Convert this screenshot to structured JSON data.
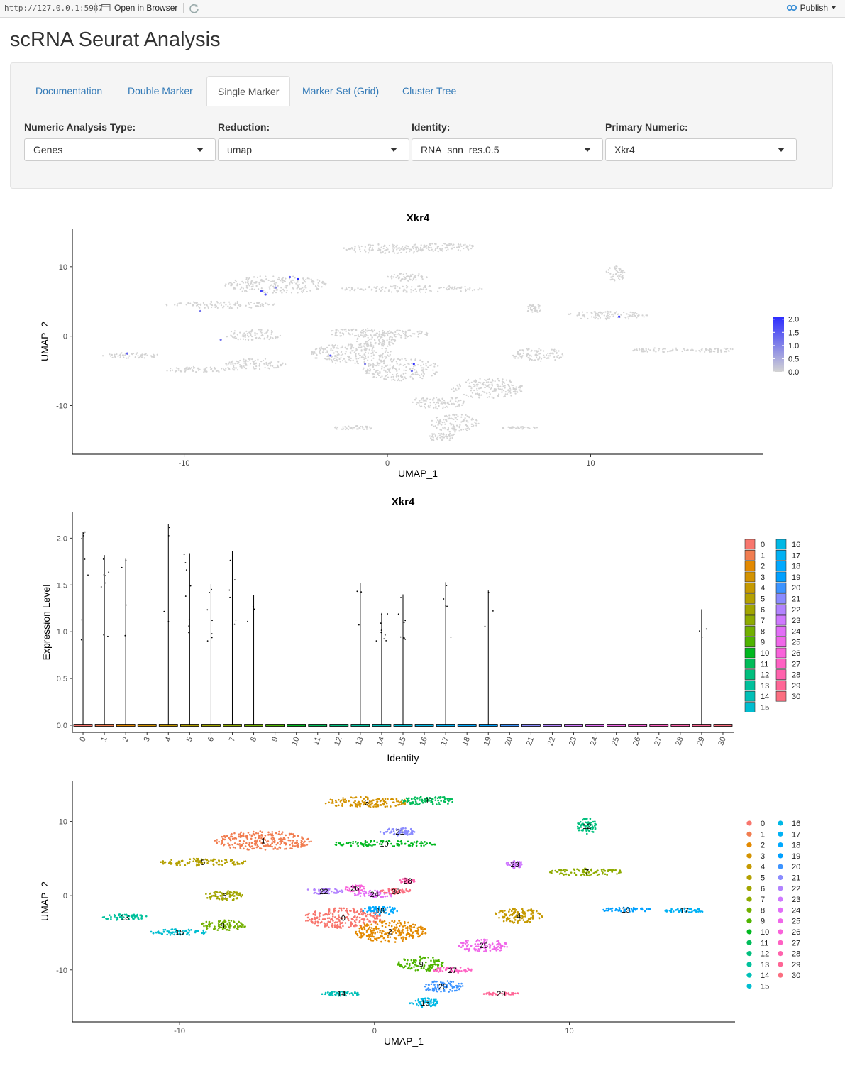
{
  "topbar": {
    "url": "http://127.0.0.1:5987",
    "open_browser_label": "Open in Browser",
    "publish_label": "Publish"
  },
  "page_title": "scRNA Seurat Analysis",
  "tabs": [
    {
      "label": "Documentation"
    },
    {
      "label": "Double Marker"
    },
    {
      "label": "Single Marker",
      "active": true
    },
    {
      "label": "Marker Set (Grid)"
    },
    {
      "label": "Cluster Tree"
    }
  ],
  "controls": [
    {
      "label": "Numeric Analysis Type:",
      "value": "Genes"
    },
    {
      "label": "Reduction:",
      "value": "umap"
    },
    {
      "label": "Identity:",
      "value": "RNA_snn_res.0.5"
    },
    {
      "label": "Primary Numeric:",
      "value": "Xkr4"
    }
  ],
  "colors": {
    "link": "#337ab7",
    "feature_low": "#d3d3d3",
    "feature_high": "#2b2bff"
  },
  "chart_data": [
    {
      "type": "scatter",
      "title": "Xkr4",
      "xlabel": "UMAP_1",
      "ylabel": "UMAP_2",
      "xlim": [
        -15.5,
        18.5
      ],
      "ylim": [
        -17,
        15.5
      ],
      "xticks": [
        -10,
        0,
        10
      ],
      "yticks": [
        -10,
        0,
        10
      ],
      "legend": {
        "placement": "right",
        "ticks": [
          "2.0",
          "1.5",
          "1.0",
          "0.5",
          "0.0"
        ],
        "range": [
          0,
          2.1
        ]
      },
      "regions": [
        {
          "cx": -5.5,
          "cy": 7.4,
          "rx": 2.5,
          "ry": 1.3
        },
        {
          "cx": -8.2,
          "cy": 4.5,
          "rx": 2.8,
          "ry": 0.5
        },
        {
          "cx": -6.6,
          "cy": 0.2,
          "rx": 1.4,
          "ry": 0.8
        },
        {
          "cx": -6.5,
          "cy": -4.0,
          "rx": 1.5,
          "ry": 0.8
        },
        {
          "cx": -12.6,
          "cy": -2.8,
          "rx": 1.4,
          "ry": 0.4
        },
        {
          "cx": -9.2,
          "cy": -4.8,
          "rx": 1.9,
          "ry": 0.4
        },
        {
          "cx": 0.2,
          "cy": 12.6,
          "rx": 2.4,
          "ry": 0.7
        },
        {
          "cx": 2.8,
          "cy": 12.8,
          "rx": 1.6,
          "ry": 0.6
        },
        {
          "cx": -1.8,
          "cy": -2.5,
          "rx": 2.0,
          "ry": 1.5
        },
        {
          "cx": 0.7,
          "cy": -4.8,
          "rx": 1.9,
          "ry": 1.6
        },
        {
          "cx": -0.6,
          "cy": -0.7,
          "rx": 1.0,
          "ry": 1.0
        },
        {
          "cx": 2.5,
          "cy": -9.5,
          "rx": 1.3,
          "ry": 1.0
        },
        {
          "cx": 1.2,
          "cy": 6.8,
          "rx": 3.5,
          "ry": 0.5
        },
        {
          "cx": 1.0,
          "cy": 8.5,
          "rx": 1.0,
          "ry": 0.6
        },
        {
          "cx": 11.2,
          "cy": 9.0,
          "rx": 0.5,
          "ry": 1.1
        },
        {
          "cx": 7.2,
          "cy": 4.0,
          "rx": 0.4,
          "ry": 0.6
        },
        {
          "cx": 10.8,
          "cy": 3.0,
          "rx": 2.0,
          "ry": 0.6
        },
        {
          "cx": 7.4,
          "cy": -2.7,
          "rx": 1.3,
          "ry": 1.0
        },
        {
          "cx": 13.5,
          "cy": -2.0,
          "rx": 1.5,
          "ry": 0.3
        },
        {
          "cx": 16.0,
          "cy": -2.0,
          "rx": 1.1,
          "ry": 0.3
        },
        {
          "cx": 4.9,
          "cy": -7.5,
          "rx": 1.8,
          "ry": 1.5
        },
        {
          "cx": 3.3,
          "cy": -12.5,
          "rx": 1.2,
          "ry": 1.3
        },
        {
          "cx": 2.7,
          "cy": -14.5,
          "rx": 0.8,
          "ry": 0.6
        },
        {
          "cx": -1.7,
          "cy": -13.2,
          "rx": 1.0,
          "ry": 0.3
        },
        {
          "cx": 6.5,
          "cy": -13.2,
          "rx": 0.9,
          "ry": 0.2
        },
        {
          "cx": -1.5,
          "cy": 0.5,
          "rx": 1.6,
          "ry": 0.6
        },
        {
          "cx": 0.8,
          "cy": 0.3,
          "rx": 1.2,
          "ry": 0.6
        }
      ],
      "expressing_cells": [
        {
          "x": -4.8,
          "y": 8.5,
          "v": 1.5
        },
        {
          "x": -5.5,
          "y": 7.0,
          "v": 1.0
        },
        {
          "x": -6.2,
          "y": 6.5,
          "v": 1.8
        },
        {
          "x": -9.2,
          "y": 3.6,
          "v": 1.2
        },
        {
          "x": -8.2,
          "y": -0.5,
          "v": 1.2
        },
        {
          "x": -12.8,
          "y": -2.5,
          "v": 1.4
        },
        {
          "x": -2.8,
          "y": -2.8,
          "v": 1.6
        },
        {
          "x": -1.1,
          "y": -4.0,
          "v": 1.0
        },
        {
          "x": 1.3,
          "y": -4.0,
          "v": 2.0
        },
        {
          "x": 1.2,
          "y": -5.0,
          "v": 1.3
        },
        {
          "x": 11.4,
          "y": 2.8,
          "v": 1.9
        },
        {
          "x": -6.0,
          "y": 6.0,
          "v": 1.6
        },
        {
          "x": -4.4,
          "y": 8.2,
          "v": 2.1
        }
      ]
    },
    {
      "type": "violin",
      "title": "Xkr4",
      "xlabel": "Identity",
      "ylabel": "Expression Level",
      "ylim": [
        -0.05,
        2.25
      ],
      "yticks": [
        "0.0",
        "0.5",
        "1.0",
        "1.5",
        "2.0"
      ],
      "categories": [
        "0",
        "1",
        "2",
        "3",
        "4",
        "5",
        "6",
        "7",
        "8",
        "9",
        "10",
        "11",
        "12",
        "13",
        "14",
        "15",
        "16",
        "17",
        "18",
        "19",
        "20",
        "21",
        "22",
        "23",
        "24",
        "25",
        "26",
        "27",
        "28",
        "29",
        "30"
      ],
      "max_values": [
        2.07,
        1.82,
        1.78,
        0,
        2.15,
        1.84,
        1.51,
        1.86,
        1.39,
        0,
        0,
        0,
        0,
        1.52,
        1.2,
        1.4,
        0,
        1.53,
        0,
        1.44,
        0,
        0,
        0,
        0,
        0,
        0,
        0,
        0,
        0,
        1.24,
        0
      ],
      "legend": {
        "placement": "right"
      }
    },
    {
      "type": "scatter",
      "xlabel": "UMAP_1",
      "ylabel": "UMAP_2",
      "xlim": [
        -15.5,
        18.5
      ],
      "ylim": [
        -17,
        15.5
      ],
      "xticks": [
        -10,
        0,
        10
      ],
      "yticks": [
        -10,
        0,
        10
      ],
      "legend": {
        "placement": "right"
      },
      "clusters": [
        {
          "id": "0",
          "cx": -1.6,
          "cy": -3.0,
          "rx": 2.0,
          "ry": 1.4
        },
        {
          "id": "1",
          "cx": -5.7,
          "cy": 7.4,
          "rx": 2.5,
          "ry": 1.3
        },
        {
          "id": "2",
          "cx": 0.8,
          "cy": -4.8,
          "rx": 1.9,
          "ry": 1.5
        },
        {
          "id": "3",
          "cx": -0.4,
          "cy": 12.6,
          "rx": 2.3,
          "ry": 0.7
        },
        {
          "id": "4",
          "cx": 7.4,
          "cy": -2.7,
          "rx": 1.3,
          "ry": 1.0
        },
        {
          "id": "5",
          "cx": -8.8,
          "cy": 4.5,
          "rx": 2.3,
          "ry": 0.5
        },
        {
          "id": "6",
          "cx": -7.7,
          "cy": 0.0,
          "rx": 1.0,
          "ry": 0.7
        },
        {
          "id": "7",
          "cx": 10.9,
          "cy": 3.2,
          "rx": 1.9,
          "ry": 0.5
        },
        {
          "id": "8",
          "cx": -7.8,
          "cy": -4.0,
          "rx": 1.2,
          "ry": 0.7
        },
        {
          "id": "9",
          "cx": 2.4,
          "cy": -9.2,
          "rx": 1.2,
          "ry": 1.0
        },
        {
          "id": "10",
          "cx": 0.5,
          "cy": 7.0,
          "rx": 2.8,
          "ry": 0.4
        },
        {
          "id": "11",
          "cx": 2.8,
          "cy": 12.8,
          "rx": 1.5,
          "ry": 0.6
        },
        {
          "id": "12",
          "cx": 10.9,
          "cy": 9.4,
          "rx": 0.5,
          "ry": 1.1
        },
        {
          "id": "13",
          "cx": -12.8,
          "cy": -2.9,
          "rx": 1.2,
          "ry": 0.4
        },
        {
          "id": "14",
          "cx": -1.7,
          "cy": -13.2,
          "rx": 1.0,
          "ry": 0.3
        },
        {
          "id": "15",
          "cx": -10.0,
          "cy": -4.9,
          "rx": 1.5,
          "ry": 0.4
        },
        {
          "id": "16",
          "cx": 2.6,
          "cy": -14.4,
          "rx": 0.8,
          "ry": 0.6
        },
        {
          "id": "17",
          "cx": 15.9,
          "cy": -2.0,
          "rx": 1.1,
          "ry": 0.3
        },
        {
          "id": "18",
          "cx": 0.3,
          "cy": -2.0,
          "rx": 0.9,
          "ry": 0.6
        },
        {
          "id": "19",
          "cx": 12.9,
          "cy": -1.9,
          "rx": 1.4,
          "ry": 0.3
        },
        {
          "id": "20",
          "cx": 3.5,
          "cy": -12.2,
          "rx": 1.1,
          "ry": 0.8
        },
        {
          "id": "21",
          "cx": 1.3,
          "cy": 8.6,
          "rx": 1.0,
          "ry": 0.5
        },
        {
          "id": "22",
          "cx": -2.6,
          "cy": 0.6,
          "rx": 1.0,
          "ry": 0.4
        },
        {
          "id": "23",
          "cx": 7.2,
          "cy": 4.2,
          "rx": 0.5,
          "ry": 0.5
        },
        {
          "id": "24",
          "cx": 0.0,
          "cy": 0.2,
          "rx": 1.1,
          "ry": 0.5
        },
        {
          "id": "25",
          "cx": 5.6,
          "cy": -6.7,
          "rx": 1.3,
          "ry": 0.9
        },
        {
          "id": "26",
          "cx": -1.0,
          "cy": 1.0,
          "rx": 0.5,
          "ry": 0.5
        },
        {
          "id": "27",
          "cx": 4.0,
          "cy": -10.0,
          "rx": 1.0,
          "ry": 0.4
        },
        {
          "id": "28",
          "cx": 1.7,
          "cy": 2.0,
          "rx": 0.4,
          "ry": 0.4
        },
        {
          "id": "29",
          "cx": 6.5,
          "cy": -13.2,
          "rx": 0.9,
          "ry": 0.2
        },
        {
          "id": "30",
          "cx": 1.1,
          "cy": 0.6,
          "rx": 0.8,
          "ry": 0.4
        }
      ]
    }
  ]
}
